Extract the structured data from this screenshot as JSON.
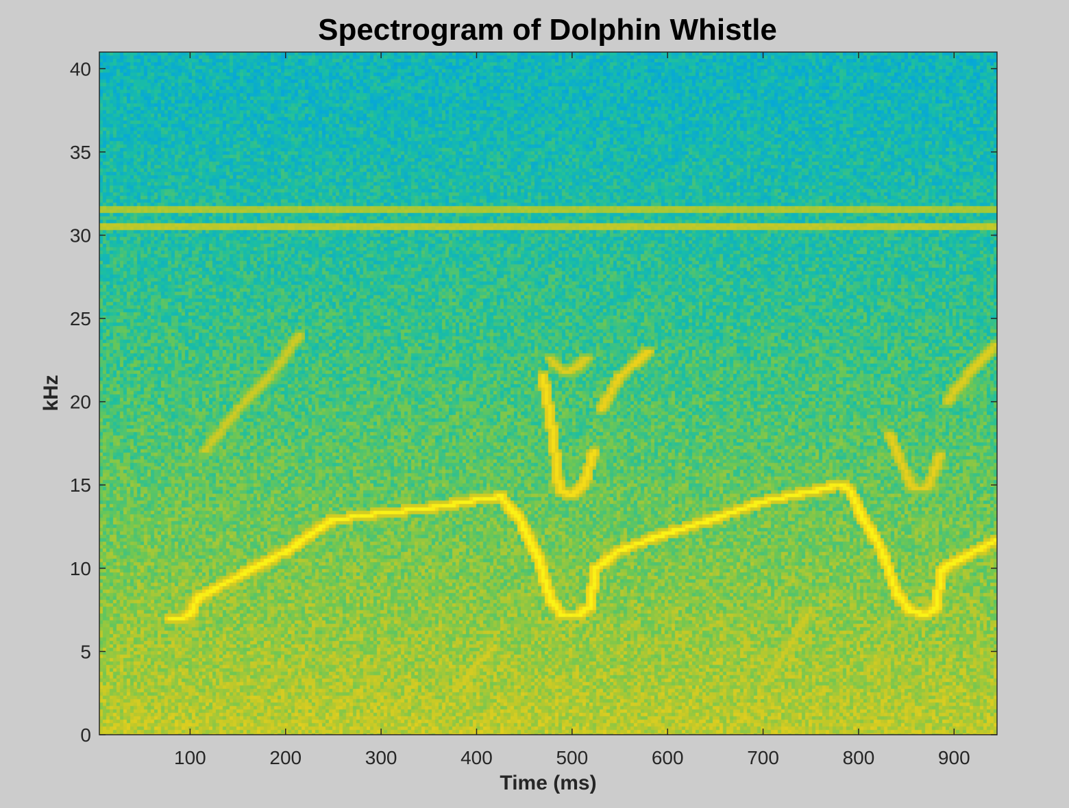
{
  "chart_data": {
    "type": "heatmap",
    "title": "Spectrogram of Dolphin Whistle",
    "xlabel": "Time (ms)",
    "ylabel": "kHz",
    "xlim": [
      5,
      945
    ],
    "ylim": [
      0,
      41
    ],
    "x_ticks": [
      100,
      200,
      300,
      400,
      500,
      600,
      700,
      800,
      900
    ],
    "y_ticks": [
      0,
      5,
      10,
      15,
      20,
      25,
      30,
      35,
      40
    ],
    "grid": false,
    "legend": "none",
    "colormap": [
      "#1f7fe0",
      "#07a9d6",
      "#1cbfa3",
      "#6cc756",
      "#c2c929",
      "#f2d21a",
      "#fbf516"
    ],
    "background_level": {
      "low_freq_khz": 0,
      "high_freq_khz": 41,
      "low_value": 0.68,
      "high_value": 0.26
    },
    "tones": [
      {
        "name": "",
        "frequency_khz": 31.5,
        "intensity": 0.62
      },
      {
        "name": "",
        "frequency_khz": 30.5,
        "intensity": 0.66
      }
    ],
    "whistle_contours": [
      {
        "intensity": 0.98,
        "points": [
          [
            80,
            7.0
          ],
          [
            100,
            7.1
          ],
          [
            108,
            8.2
          ],
          [
            150,
            9.5
          ],
          [
            200,
            11.0
          ],
          [
            250,
            12.9
          ],
          [
            300,
            13.3
          ],
          [
            350,
            13.6
          ],
          [
            400,
            14.1
          ],
          [
            425,
            14.3
          ],
          [
            445,
            13.0
          ],
          [
            465,
            10.5
          ],
          [
            478,
            8.0
          ],
          [
            490,
            7.2
          ],
          [
            505,
            7.2
          ],
          [
            518,
            7.6
          ],
          [
            525,
            10.0
          ],
          [
            550,
            11.1
          ],
          [
            600,
            12.1
          ],
          [
            650,
            13.0
          ],
          [
            700,
            14.0
          ],
          [
            750,
            14.6
          ],
          [
            780,
            15.0
          ],
          [
            790,
            14.8
          ],
          [
            805,
            13.0
          ],
          [
            825,
            11.0
          ],
          [
            840,
            8.5
          ],
          [
            855,
            7.4
          ],
          [
            870,
            7.2
          ],
          [
            880,
            7.5
          ],
          [
            888,
            10.0
          ],
          [
            945,
            11.7
          ]
        ]
      },
      {
        "intensity": 0.88,
        "points": [
          [
            470,
            21.5
          ],
          [
            480,
            18.0
          ],
          [
            487,
            14.6
          ],
          [
            500,
            14.4
          ],
          [
            513,
            15.0
          ],
          [
            522,
            17.0
          ]
        ]
      },
      {
        "intensity": 0.8,
        "points": [
          [
            530,
            19.5
          ],
          [
            550,
            21.5
          ],
          [
            580,
            23.0
          ]
        ]
      },
      {
        "intensity": 0.75,
        "points": [
          [
            478,
            22.5
          ],
          [
            493,
            21.7
          ],
          [
            505,
            22.1
          ],
          [
            515,
            22.7
          ]
        ]
      },
      {
        "intensity": 0.78,
        "points": [
          [
            833,
            18.0
          ],
          [
            847,
            16.0
          ],
          [
            857,
            14.8
          ],
          [
            872,
            14.8
          ],
          [
            885,
            16.8
          ]
        ]
      },
      {
        "intensity": 0.75,
        "points": [
          [
            893,
            20.0
          ],
          [
            920,
            22.0
          ],
          [
            945,
            23.5
          ]
        ]
      },
      {
        "intensity": 0.7,
        "points": [
          [
            115,
            17.0
          ],
          [
            150,
            19.5
          ],
          [
            190,
            22.0
          ],
          [
            215,
            24.0
          ]
        ]
      },
      {
        "intensity": 0.72,
        "points": [
          [
            385,
            3.0
          ],
          [
            400,
            4.2
          ],
          [
            420,
            5.3
          ]
        ]
      },
      {
        "intensity": 0.7,
        "points": [
          [
            700,
            3.0
          ],
          [
            730,
            5.5
          ],
          [
            750,
            7.5
          ]
        ]
      }
    ]
  }
}
